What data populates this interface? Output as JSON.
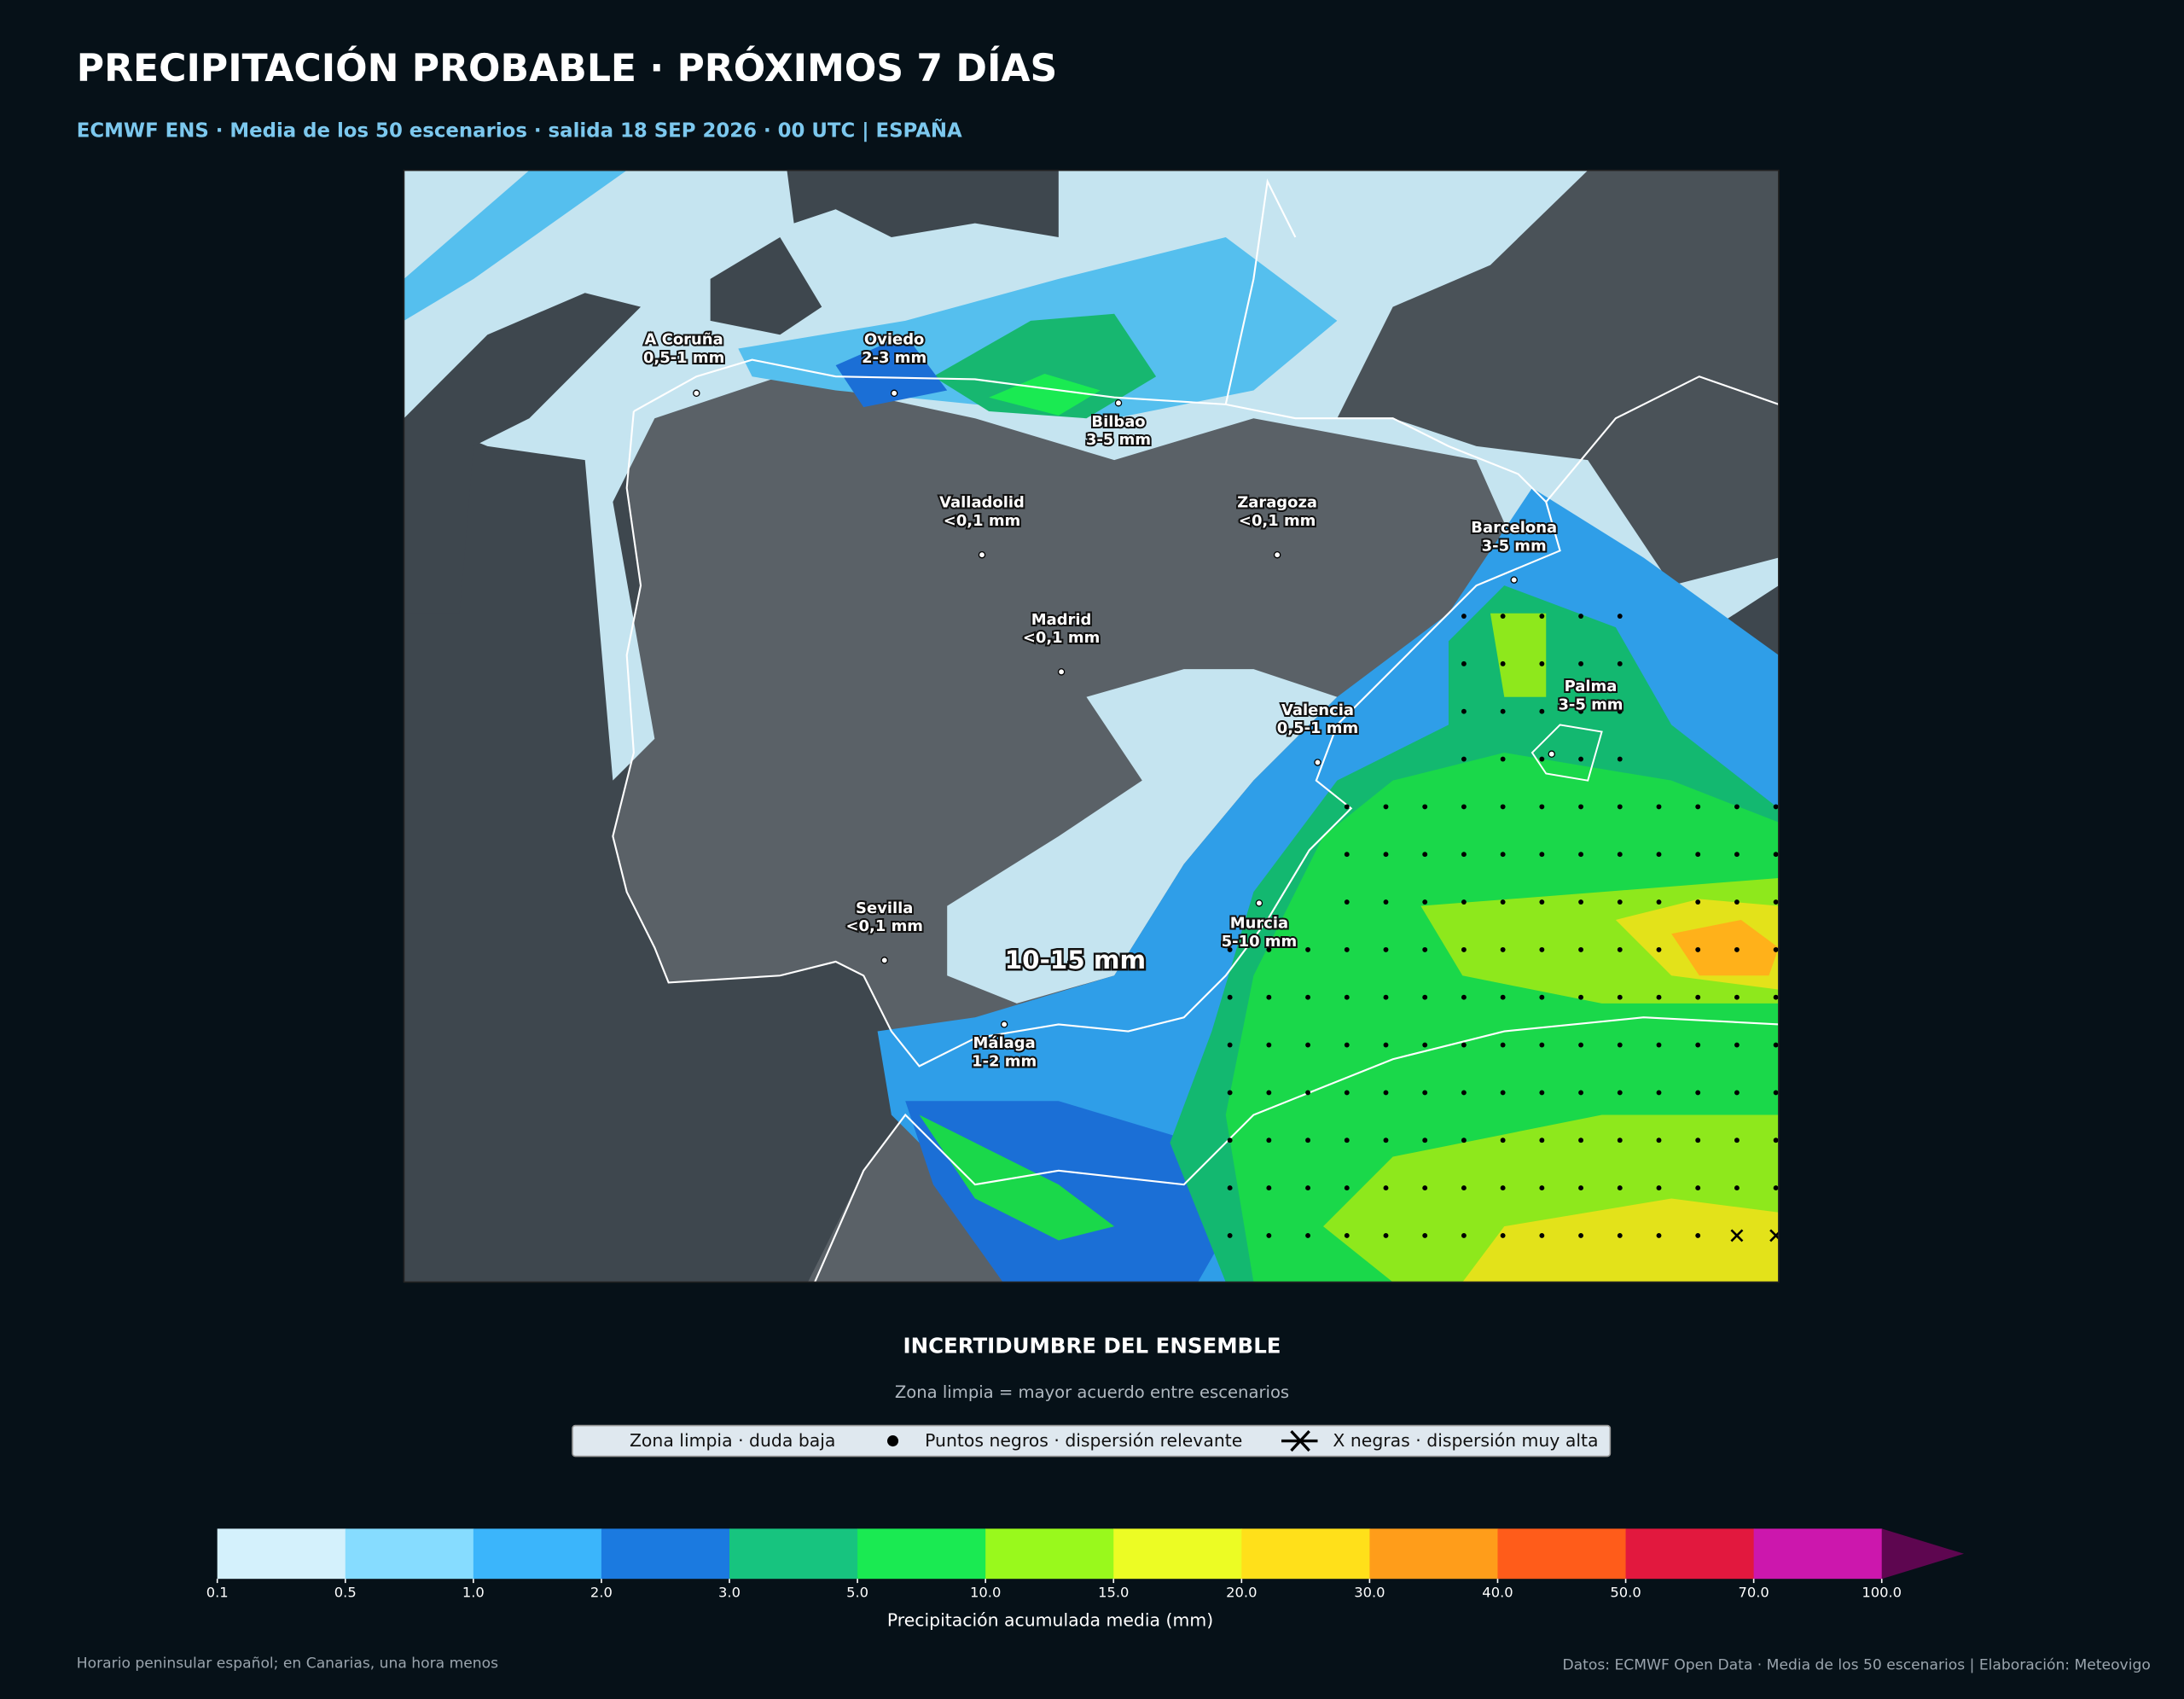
{
  "header": {
    "title": "PRECIPITACIÓN PROBABLE · PRÓXIMOS 7 DÍAS",
    "subtitle": "ECMWF ENS · Media de los 50 escenarios · salida 18 SEP 2026 · 00 UTC | ESPAÑA"
  },
  "map": {
    "cities": [
      {
        "name": "A Coruña",
        "value": "0,5-1 mm"
      },
      {
        "name": "Oviedo",
        "value": "2-3 mm"
      },
      {
        "name": "Bilbao",
        "value": "3-5 mm"
      },
      {
        "name": "Valladolid",
        "value": "<0,1 mm"
      },
      {
        "name": "Zaragoza",
        "value": "<0,1 mm"
      },
      {
        "name": "Barcelona",
        "value": "3-5 mm"
      },
      {
        "name": "Madrid",
        "value": "<0,1 mm"
      },
      {
        "name": "Palma",
        "value": "3-5 mm"
      },
      {
        "name": "Valencia",
        "value": "0,5-1 mm"
      },
      {
        "name": "Sevilla",
        "value": "<0,1 mm"
      },
      {
        "name": "Murcia",
        "value": "5-10 mm"
      },
      {
        "name": "Málaga",
        "value": "1-2 mm"
      }
    ],
    "annotation": "10-15 mm"
  },
  "uncertainty": {
    "title": "INCERTIDUMBRE DEL ENSEMBLE",
    "subtitle": "Zona limpia = mayor acuerdo entre escenarios",
    "legend": [
      "Zona limpia · duda baja",
      "Puntos negros · dispersión relevante",
      "X negras · dispersión muy alta"
    ]
  },
  "colorbar": {
    "label": "Precipitación acumulada media (mm)",
    "ticks": [
      "0.1",
      "0.5",
      "1.0",
      "2.0",
      "3.0",
      "5.0",
      "10.0",
      "15.0",
      "20.0",
      "30.0",
      "40.0",
      "50.0",
      "70.0",
      "100.0"
    ],
    "colors": [
      "#d4f1fc",
      "#86dcff",
      "#3bb5fb",
      "#1b7ae0",
      "#17c47f",
      "#1aea52",
      "#99f91c",
      "#ecfc24",
      "#ffe01a",
      "#ff9d1a",
      "#ff5c1a",
      "#e2183e",
      "#cc17ad",
      "#5e0650"
    ]
  },
  "footer": {
    "left": "Horario peninsular español; en Canarias, una hora menos",
    "right": "Datos: ECMWF Open Data · Media de los 50 escenarios | Elaboración: Meteovigo"
  }
}
